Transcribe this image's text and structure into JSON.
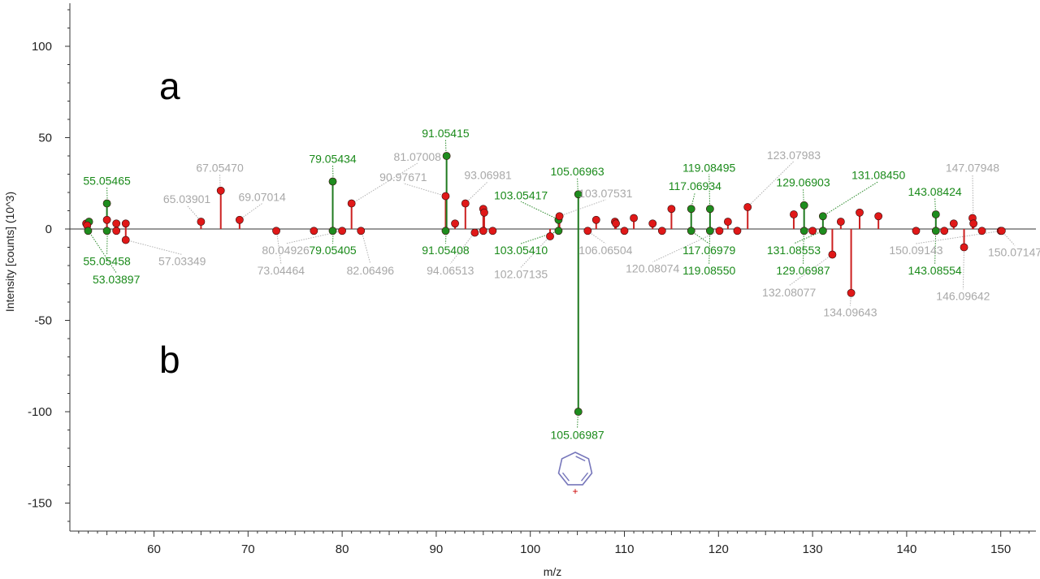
{
  "chart_data": {
    "type": "stem",
    "xlabel": "m/z",
    "ylabel": "Intensity [counts] (10^3)",
    "xlim": [
      52,
      155
    ],
    "ylim": [
      -162,
      122
    ],
    "xticks": [
      60,
      70,
      80,
      90,
      100,
      110,
      120,
      130,
      140,
      150
    ],
    "yticks": [
      100,
      50,
      0,
      -50,
      -100,
      -150
    ],
    "panel_labels": {
      "top": "a",
      "bottom": "b"
    },
    "colors": {
      "matched": "#1f7a1f",
      "matched_marker": "#1e8c1e",
      "other": "#cc2020",
      "other_marker": "#e01818",
      "label_matched": "#1a8a1a",
      "label_other": "#a8a8a8",
      "structure": "#7777bb",
      "charge": "#cc0000"
    },
    "structure": {
      "icon": "tropylium-icon",
      "charge": "+"
    },
    "series": [
      {
        "name": "a",
        "peaks": [
          {
            "x": 52.8,
            "y": 3,
            "m": false
          },
          {
            "x": 53.1,
            "y": 4,
            "m": true
          },
          {
            "x": 55.0,
            "y": 14,
            "m": true
          },
          {
            "x": 55.0,
            "y": 5,
            "m": false
          },
          {
            "x": 56.0,
            "y": 3,
            "m": false
          },
          {
            "x": 57.0,
            "y": 3,
            "m": false
          },
          {
            "x": 65.0,
            "y": 4,
            "m": false
          },
          {
            "x": 67.1,
            "y": 21,
            "m": false
          },
          {
            "x": 69.1,
            "y": 5,
            "m": false
          },
          {
            "x": 79.0,
            "y": 26,
            "m": true
          },
          {
            "x": 81.0,
            "y": 14,
            "m": false
          },
          {
            "x": 91.0,
            "y": 18,
            "m": false
          },
          {
            "x": 91.1,
            "y": 40,
            "m": true
          },
          {
            "x": 92.0,
            "y": 3,
            "m": false
          },
          {
            "x": 93.1,
            "y": 14,
            "m": false
          },
          {
            "x": 95.0,
            "y": 11,
            "m": false
          },
          {
            "x": 95.1,
            "y": 9,
            "m": false
          },
          {
            "x": 103.0,
            "y": 5,
            "m": true
          },
          {
            "x": 103.1,
            "y": 7,
            "m": false
          },
          {
            "x": 105.1,
            "y": 19,
            "m": true
          },
          {
            "x": 107.0,
            "y": 5,
            "m": false
          },
          {
            "x": 109.0,
            "y": 4,
            "m": false
          },
          {
            "x": 109.1,
            "y": 3,
            "m": false
          },
          {
            "x": 111.0,
            "y": 6,
            "m": false
          },
          {
            "x": 113.0,
            "y": 3,
            "m": false
          },
          {
            "x": 115.0,
            "y": 11,
            "m": false
          },
          {
            "x": 117.1,
            "y": 11,
            "m": true
          },
          {
            "x": 119.1,
            "y": 11,
            "m": true
          },
          {
            "x": 121.0,
            "y": 4,
            "m": false
          },
          {
            "x": 123.1,
            "y": 12,
            "m": false
          },
          {
            "x": 128.0,
            "y": 8,
            "m": false
          },
          {
            "x": 129.1,
            "y": 13,
            "m": true
          },
          {
            "x": 131.1,
            "y": 7,
            "m": true
          },
          {
            "x": 133.0,
            "y": 4,
            "m": false
          },
          {
            "x": 135.0,
            "y": 9,
            "m": false
          },
          {
            "x": 137.0,
            "y": 7,
            "m": false
          },
          {
            "x": 143.1,
            "y": 8,
            "m": true
          },
          {
            "x": 145.0,
            "y": 3,
            "m": false
          },
          {
            "x": 147.0,
            "y": 6,
            "m": false
          },
          {
            "x": 147.1,
            "y": 3,
            "m": false
          }
        ]
      },
      {
        "name": "b",
        "peaks": [
          {
            "x": 52.9,
            "y": 2,
            "m": false
          },
          {
            "x": 53.0,
            "y": -1,
            "m": true
          },
          {
            "x": 55.0,
            "y": -1,
            "m": true
          },
          {
            "x": 56.0,
            "y": -1,
            "m": false
          },
          {
            "x": 57.0,
            "y": -6,
            "m": false
          },
          {
            "x": 73.0,
            "y": -1,
            "m": false
          },
          {
            "x": 77.0,
            "y": -1,
            "m": false
          },
          {
            "x": 79.0,
            "y": -1,
            "m": true
          },
          {
            "x": 80.0,
            "y": -1,
            "m": false
          },
          {
            "x": 82.0,
            "y": -1,
            "m": false
          },
          {
            "x": 91.0,
            "y": -1,
            "m": true
          },
          {
            "x": 94.1,
            "y": -2,
            "m": false
          },
          {
            "x": 95.0,
            "y": -1,
            "m": false
          },
          {
            "x": 96.0,
            "y": -1,
            "m": false
          },
          {
            "x": 102.1,
            "y": -4,
            "m": false
          },
          {
            "x": 103.0,
            "y": -1,
            "m": true
          },
          {
            "x": 105.1,
            "y": -100,
            "m": true
          },
          {
            "x": 106.1,
            "y": -1,
            "m": false
          },
          {
            "x": 110.0,
            "y": -1,
            "m": false
          },
          {
            "x": 114.0,
            "y": -1,
            "m": false
          },
          {
            "x": 117.1,
            "y": -1,
            "m": true
          },
          {
            "x": 119.1,
            "y": -1,
            "m": true
          },
          {
            "x": 120.1,
            "y": -1,
            "m": false
          },
          {
            "x": 122.0,
            "y": -1,
            "m": false
          },
          {
            "x": 129.1,
            "y": -1,
            "m": true
          },
          {
            "x": 130.0,
            "y": -1,
            "m": false
          },
          {
            "x": 131.1,
            "y": -1,
            "m": true
          },
          {
            "x": 132.1,
            "y": -14,
            "m": false
          },
          {
            "x": 134.1,
            "y": -35,
            "m": false
          },
          {
            "x": 141.0,
            "y": -1,
            "m": false
          },
          {
            "x": 143.1,
            "y": -1,
            "m": true
          },
          {
            "x": 144.0,
            "y": -1,
            "m": false
          },
          {
            "x": 146.1,
            "y": -10,
            "m": false
          },
          {
            "x": 148.0,
            "y": -1,
            "m": false
          },
          {
            "x": 150.0,
            "y": -1,
            "m": false
          },
          {
            "x": 150.1,
            "y": -1,
            "m": false
          }
        ]
      }
    ],
    "annotations": [
      {
        "text": "55.05465",
        "m": true,
        "x": 55.05,
        "y": 14,
        "lx": 55.0,
        "ly": 23
      },
      {
        "text": "55.05458",
        "m": true,
        "x": 55.05,
        "y": -1,
        "lx": 55.0,
        "ly": -14
      },
      {
        "text": "53.03897",
        "m": true,
        "x": 53.04,
        "y": -1,
        "lx": 56.0,
        "ly": -24
      },
      {
        "text": "57.03349",
        "m": false,
        "x": 57.03,
        "y": -6,
        "lx": 63.0,
        "ly": -14
      },
      {
        "text": "65.03901",
        "m": false,
        "x": 65.04,
        "y": 4,
        "lx": 63.5,
        "ly": 13
      },
      {
        "text": "67.05470",
        "m": false,
        "x": 67.05,
        "y": 21,
        "lx": 67.0,
        "ly": 30
      },
      {
        "text": "69.07014",
        "m": false,
        "x": 69.07,
        "y": 5,
        "lx": 71.5,
        "ly": 14
      },
      {
        "text": "80.04926",
        "m": false,
        "x": 80.05,
        "y": -1,
        "lx": 74.0,
        "ly": -8
      },
      {
        "text": "73.04464",
        "m": false,
        "x": 73.04,
        "y": -1,
        "lx": 73.5,
        "ly": -19
      },
      {
        "text": "79.05434",
        "m": true,
        "x": 79.05,
        "y": 26,
        "lx": 79.0,
        "ly": 35
      },
      {
        "text": "79.05405",
        "m": true,
        "x": 79.05,
        "y": -1,
        "lx": 79.0,
        "ly": -8
      },
      {
        "text": "82.06496",
        "m": false,
        "x": 82.06,
        "y": -1,
        "lx": 83.0,
        "ly": -19
      },
      {
        "text": "81.07008",
        "m": false,
        "x": 81.07,
        "y": 14,
        "lx": 88.0,
        "ly": 36
      },
      {
        "text": "90.97671",
        "m": false,
        "x": 90.98,
        "y": 18,
        "lx": 86.5,
        "ly": 25
      },
      {
        "text": "91.05415",
        "m": true,
        "x": 91.05,
        "y": 40,
        "lx": 91.0,
        "ly": 49
      },
      {
        "text": "91.05408",
        "m": true,
        "x": 91.05,
        "y": -1,
        "lx": 91.0,
        "ly": -8
      },
      {
        "text": "93.06981",
        "m": false,
        "x": 93.07,
        "y": 14,
        "lx": 95.5,
        "ly": 26
      },
      {
        "text": "94.06513",
        "m": false,
        "x": 94.07,
        "y": -2,
        "lx": 91.5,
        "ly": -19
      },
      {
        "text": "103.05417",
        "m": true,
        "x": 103.05,
        "y": 5,
        "lx": 99.0,
        "ly": 15
      },
      {
        "text": "103.05410",
        "m": true,
        "x": 103.05,
        "y": -1,
        "lx": 99.0,
        "ly": -8
      },
      {
        "text": "102.07135",
        "m": false,
        "x": 102.07,
        "y": -4,
        "lx": 99.0,
        "ly": -21
      },
      {
        "text": "105.06963",
        "m": true,
        "x": 105.07,
        "y": 19,
        "lx": 105.0,
        "ly": 28
      },
      {
        "text": "103.07531",
        "m": false,
        "x": 103.08,
        "y": 7,
        "lx": 108.0,
        "ly": 16
      },
      {
        "text": "106.06504",
        "m": false,
        "x": 106.07,
        "y": -1,
        "lx": 108.0,
        "ly": -8
      },
      {
        "text": "120.08074",
        "m": false,
        "x": 120.08,
        "y": -1,
        "lx": 113.0,
        "ly": -18
      },
      {
        "text": "117.06934",
        "m": true,
        "x": 117.07,
        "y": 11,
        "lx": 117.5,
        "ly": 20
      },
      {
        "text": "119.08495",
        "m": true,
        "x": 119.08,
        "y": 11,
        "lx": 119.0,
        "ly": 30
      },
      {
        "text": "117.06979",
        "m": true,
        "x": 117.07,
        "y": -1,
        "lx": 119.0,
        "ly": -8
      },
      {
        "text": "119.08550",
        "m": true,
        "x": 119.09,
        "y": -1,
        "lx": 119.0,
        "ly": -19
      },
      {
        "text": "123.07983",
        "m": false,
        "x": 123.08,
        "y": 12,
        "lx": 128.0,
        "ly": 37
      },
      {
        "text": "129.06903",
        "m": true,
        "x": 129.07,
        "y": 13,
        "lx": 129.0,
        "ly": 22
      },
      {
        "text": "131.08450",
        "m": true,
        "x": 131.08,
        "y": 7,
        "lx": 137.0,
        "ly": 26
      },
      {
        "text": "131.08553",
        "m": true,
        "x": 131.09,
        "y": -1,
        "lx": 128.0,
        "ly": -8
      },
      {
        "text": "129.06987",
        "m": true,
        "x": 129.07,
        "y": -1,
        "lx": 129.0,
        "ly": -19
      },
      {
        "text": "132.08077",
        "m": false,
        "x": 132.08,
        "y": -14,
        "lx": 127.5,
        "ly": -31
      },
      {
        "text": "134.09643",
        "m": false,
        "x": 134.1,
        "y": -35,
        "lx": 134.0,
        "ly": -42
      },
      {
        "text": "143.08424",
        "m": true,
        "x": 143.08,
        "y": 8,
        "lx": 143.0,
        "ly": 17
      },
      {
        "text": "143.08554",
        "m": true,
        "x": 143.09,
        "y": -1,
        "lx": 143.0,
        "ly": -19
      },
      {
        "text": "147.07948",
        "m": false,
        "x": 147.08,
        "y": 6,
        "lx": 147.0,
        "ly": 30
      },
      {
        "text": "150.09143",
        "m": false,
        "x": 150.09,
        "y": -1,
        "lx": 141.0,
        "ly": -8
      },
      {
        "text": "150.07147",
        "m": false,
        "x": 150.07,
        "y": -1,
        "lx": 151.5,
        "ly": -9
      },
      {
        "text": "146.09642",
        "m": false,
        "x": 146.1,
        "y": -10,
        "lx": 146.0,
        "ly": -33
      },
      {
        "text": "105.06987",
        "m": true,
        "x": 105.07,
        "y": -100,
        "lx": 105.0,
        "ly": -109
      }
    ]
  }
}
